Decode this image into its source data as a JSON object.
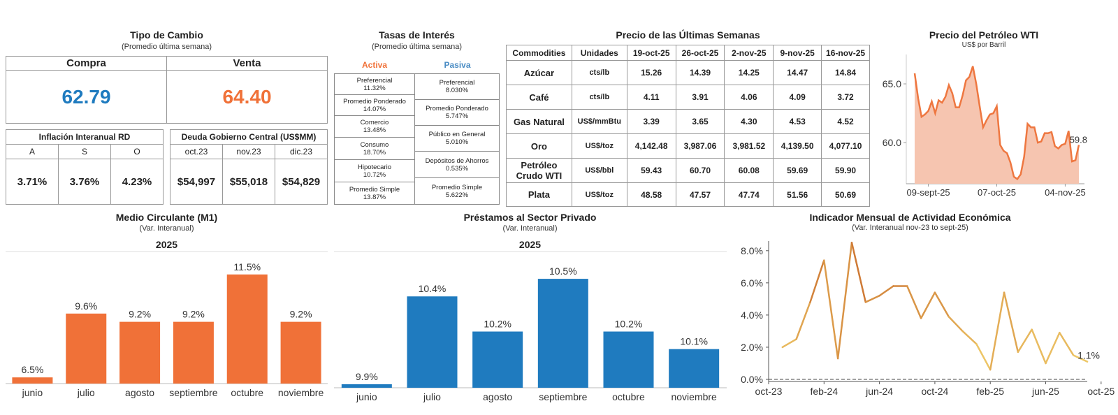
{
  "colors": {
    "orange": "#f07138",
    "blue": "#1f7bbf",
    "wti_fill": "#f6c5b0",
    "wti_line": "#ee7740"
  },
  "fx": {
    "title": "Tipo de Cambio",
    "subtitle": "(Promedio última semana)",
    "compra_label": "Compra",
    "venta_label": "Venta",
    "compra_value": "62.79",
    "venta_value": "64.40"
  },
  "inflation": {
    "title": "Inflación Interanual RD",
    "months": [
      "A",
      "S",
      "O"
    ],
    "values": [
      "3.71%",
      "3.76%",
      "4.23%"
    ]
  },
  "debt": {
    "title": "Deuda Gobierno Central (US$MM)",
    "months": [
      "oct.23",
      "nov.23",
      "dic.23"
    ],
    "values": [
      "$54,997",
      "$55,018",
      "$54,829"
    ]
  },
  "rates": {
    "title": "Tasas de Interés",
    "subtitle": "(Promedio última semana)",
    "activa_label": "Activa",
    "pasiva_label": "Pasiva",
    "activa": [
      {
        "name": "Preferencial",
        "value": "11.32%"
      },
      {
        "name": "Promedio Ponderado",
        "value": "14.07%"
      },
      {
        "name": "Comercio",
        "value": "13.48%"
      },
      {
        "name": "Consumo",
        "value": "18.70%"
      },
      {
        "name": "Hipotecario",
        "value": "10.72%"
      },
      {
        "name": "Promedio Simple",
        "value": "13.87%"
      }
    ],
    "pasiva": [
      {
        "name": "Preferencial",
        "value": "8.030%"
      },
      {
        "name": "Promedio Ponderado",
        "value": "5.747%"
      },
      {
        "name": "Público en General",
        "value": "5.010%"
      },
      {
        "name": "Depósitos de Ahorros",
        "value": "0.535%"
      },
      {
        "name": "Promedio Simple",
        "value": "5.622%"
      }
    ]
  },
  "commodities": {
    "title": "Precio de las Últimas Semanas",
    "headers": [
      "Commodities",
      "Unidades",
      "19-oct-25",
      "26-oct-25",
      "2-nov-25",
      "9-nov-25",
      "16-nov-25"
    ],
    "rows": [
      [
        "Azúcar",
        "cts/lb",
        "15.26",
        "14.39",
        "14.25",
        "14.47",
        "14.84"
      ],
      [
        "Café",
        "cts/lb",
        "4.11",
        "3.91",
        "4.06",
        "4.09",
        "3.72"
      ],
      [
        "Gas Natural",
        "US$/mmBtu",
        "3.39",
        "3.65",
        "4.30",
        "4.53",
        "4.52"
      ],
      [
        "Oro",
        "US$/toz",
        "4,142.48",
        "3,987.06",
        "3,981.52",
        "4,139.50",
        "4,077.10"
      ],
      [
        "Petróleo Crudo WTI",
        "US$/bbl",
        "59.43",
        "60.70",
        "60.08",
        "59.69",
        "59.90"
      ],
      [
        "Plata",
        "US$/toz",
        "48.58",
        "47.57",
        "47.74",
        "51.56",
        "50.69"
      ]
    ]
  },
  "chart_data": [
    {
      "type": "area",
      "title": "Precio del Petróleo WTI",
      "subtitle": "US$ por Barril",
      "ylim": [
        56.5,
        67.5
      ],
      "yticks": [
        60.0,
        65.0
      ],
      "ytick_labels": [
        "60.0",
        "65.0"
      ],
      "xtick_labels": [
        "09-sept-25",
        "07-oct-25",
        "04-nov-25"
      ],
      "xtick_index": [
        4,
        24,
        44
      ],
      "values": [
        65.9,
        63.8,
        62.2,
        62.4,
        62.7,
        63.5,
        62.5,
        63.6,
        63.4,
        63.9,
        64.9,
        64.2,
        63.0,
        63.0,
        64.0,
        65.3,
        65.6,
        66.5,
        65.0,
        63.1,
        61.3,
        61.9,
        62.4,
        62.5,
        63.1,
        59.8,
        59.3,
        59.1,
        58.3,
        57.1,
        56.9,
        57.3,
        58.8,
        61.6,
        61.3,
        61.3,
        60.0,
        60.1,
        60.8,
        60.8,
        60.9,
        59.7,
        59.5,
        59.8,
        59.9,
        61.0,
        58.4,
        58.5,
        59.8
      ],
      "last_label": "59.8"
    },
    {
      "type": "bar",
      "title": "Medio Circulante (M1)",
      "subtitle": "(Var. Interanual)",
      "year": "2025",
      "categories": [
        "junio",
        "julio",
        "agosto",
        "septiembre",
        "octubre",
        "noviembre"
      ],
      "values": [
        6.5,
        9.6,
        9.2,
        9.2,
        11.5,
        9.2
      ],
      "labels": [
        "6.5%",
        "9.6%",
        "9.2%",
        "9.2%",
        "11.5%",
        "9.2%"
      ],
      "ylim": [
        6.2,
        11.8
      ]
    },
    {
      "type": "bar",
      "title": "Préstamos al Sector Privado",
      "subtitle": "(Var. Interanual)",
      "year": "2025",
      "categories": [
        "junio",
        "julio",
        "agosto",
        "septiembre",
        "octubre",
        "noviembre"
      ],
      "values": [
        9.9,
        10.4,
        10.2,
        10.5,
        10.2,
        10.1
      ],
      "labels": [
        "9.9%",
        "10.4%",
        "10.2%",
        "10.5%",
        "10.2%",
        "10.1%"
      ],
      "ylim": [
        9.88,
        10.56
      ]
    },
    {
      "type": "line",
      "title": "Indicador Mensual de Actividad Económica",
      "subtitle": "(Var. Interanual nov-23 to sept-25)",
      "ylim": [
        0,
        8.6
      ],
      "yticks": [
        0,
        2,
        4,
        6,
        8
      ],
      "ytick_labels": [
        "0.0%",
        "2.0%",
        "4.0%",
        "6.0%",
        "8.0%"
      ],
      "xtick_labels": [
        "oct-23",
        "feb-24",
        "jun-24",
        "oct-24",
        "feb-25",
        "jun-25",
        "oct-25"
      ],
      "xtick_index": [
        0,
        4,
        8,
        12,
        16,
        20,
        24
      ],
      "values": [
        null,
        2.0,
        2.5,
        4.8,
        7.4,
        1.3,
        8.5,
        4.8,
        5.2,
        5.8,
        5.8,
        3.8,
        5.4,
        3.9,
        3.0,
        2.2,
        0.6,
        5.4,
        1.7,
        3.1,
        1.0,
        2.9,
        1.5,
        1.1
      ],
      "last_label": "1.1%"
    }
  ]
}
